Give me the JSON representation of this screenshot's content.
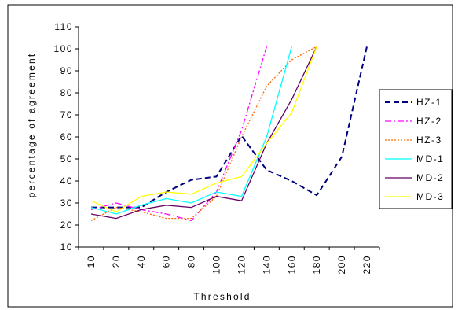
{
  "chart_data": {
    "type": "line",
    "title": "",
    "xlabel": "Threshold",
    "ylabel": "percentage of agreement",
    "categories": [
      "10",
      "20",
      "40",
      "60",
      "80",
      "100",
      "120",
      "140",
      "160",
      "180",
      "200",
      "220"
    ],
    "ylim": [
      10,
      110
    ],
    "yticks": [
      "10",
      "20",
      "30",
      "40",
      "50",
      "60",
      "70",
      "80",
      "90",
      "100",
      "110"
    ],
    "grid": false,
    "legend_position": "right",
    "series": [
      {
        "name": "HZ-1",
        "color": "#000080",
        "dash": "dashed",
        "values": [
          28,
          28,
          28,
          35,
          40.5,
          42,
          60.5,
          45,
          40,
          33.5,
          51,
          101
        ]
      },
      {
        "name": "HZ-2",
        "color": "#ff00ff",
        "dash": "dashdot",
        "values": [
          27,
          30,
          27,
          25,
          22,
          35,
          63,
          101,
          null,
          null,
          null,
          null
        ]
      },
      {
        "name": "HZ-3",
        "color": "#ff6600",
        "dash": "dotted",
        "values": [
          22,
          28,
          26,
          23,
          23,
          33,
          60,
          83,
          95,
          101,
          null,
          null
        ]
      },
      {
        "name": "MD-1",
        "color": "#00ffff",
        "dash": "solid",
        "values": [
          28,
          25,
          29,
          32,
          30,
          35,
          33,
          60,
          101,
          null,
          null,
          null
        ]
      },
      {
        "name": "MD-2",
        "color": "#660066",
        "dash": "solid",
        "values": [
          25,
          23,
          27,
          29,
          28,
          33,
          31,
          57,
          77,
          101,
          null,
          null
        ]
      },
      {
        "name": "MD-3",
        "color": "#ffff00",
        "dash": "solid",
        "values": [
          31,
          26,
          33,
          35,
          34,
          39,
          42,
          57,
          71,
          101,
          null,
          null
        ]
      }
    ]
  }
}
